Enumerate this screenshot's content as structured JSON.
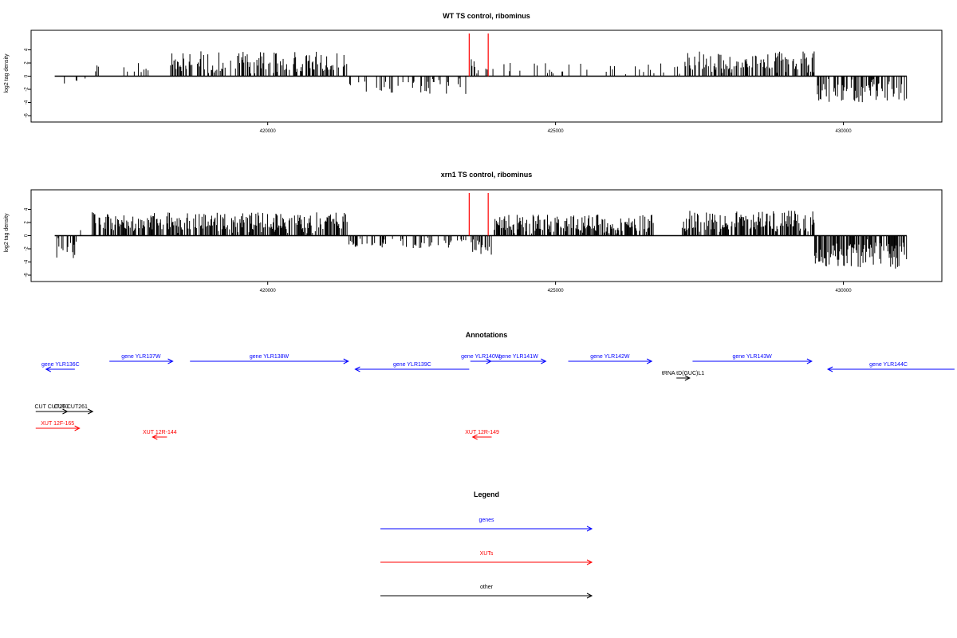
{
  "colors": {
    "gene": "#0000ff",
    "xut": "#ff0000",
    "other": "#000000",
    "marker": "#ff0000",
    "bar": "#000000"
  },
  "chart_data": [
    {
      "type": "bar",
      "title": "WT TS control, ribominus",
      "ylabel": "log2 tag density",
      "xlim": [
        415890,
        431710
      ],
      "ylim": [
        -6,
        6
      ],
      "x_ticks": [
        "420000",
        "425000",
        "430000"
      ],
      "y_ticks": [
        "4",
        "2",
        "0",
        "-2",
        "-4",
        "-6"
      ],
      "markers": [
        423500,
        423830
      ],
      "segments": [
        {
          "from": 416300,
          "to": 416950,
          "dir": -1,
          "density": 0.08,
          "amp": 1.2,
          "seed": 3
        },
        {
          "from": 416950,
          "to": 418300,
          "dir": 1,
          "density": 0.12,
          "amp": 2.0,
          "seed": 5
        },
        {
          "from": 418300,
          "to": 421400,
          "dir": 1,
          "density": 0.45,
          "amp": 3.8,
          "seed": 7
        },
        {
          "from": 421400,
          "to": 423450,
          "dir": -1,
          "density": 0.25,
          "amp": 2.8,
          "seed": 11
        },
        {
          "from": 423500,
          "to": 423830,
          "dir": 1,
          "density": 0.3,
          "amp": 2.8,
          "seed": 13
        },
        {
          "from": 423900,
          "to": 427200,
          "dir": 1,
          "density": 0.1,
          "amp": 2.0,
          "seed": 17
        },
        {
          "from": 427200,
          "to": 429500,
          "dir": 1,
          "density": 0.5,
          "amp": 3.8,
          "seed": 19
        },
        {
          "from": 429500,
          "to": 431100,
          "dir": -1,
          "density": 0.55,
          "amp": 4.2,
          "seed": 23
        }
      ]
    },
    {
      "type": "bar",
      "title": "xrn1 TS control, ribominus",
      "ylabel": "log2 tag density",
      "xlim": [
        415890,
        431710
      ],
      "ylim": [
        -6,
        6
      ],
      "x_ticks": [
        "420000",
        "425000",
        "430000"
      ],
      "y_ticks": [
        "4",
        "2",
        "0",
        "-2",
        "-4",
        "-6"
      ],
      "markers": [
        423500,
        423830
      ],
      "segments": [
        {
          "from": 416300,
          "to": 416700,
          "dir": -1,
          "density": 0.3,
          "amp": 3.6,
          "seed": 29
        },
        {
          "from": 416700,
          "to": 416950,
          "dir": 1,
          "density": 0.15,
          "amp": 1.0,
          "seed": 31
        },
        {
          "from": 416950,
          "to": 421400,
          "dir": 1,
          "density": 0.7,
          "amp": 3.6,
          "seed": 37
        },
        {
          "from": 421400,
          "to": 423450,
          "dir": -1,
          "density": 0.35,
          "amp": 2.0,
          "seed": 41
        },
        {
          "from": 423500,
          "to": 423900,
          "dir": -1,
          "density": 0.6,
          "amp": 3.0,
          "seed": 43
        },
        {
          "from": 423900,
          "to": 426700,
          "dir": 1,
          "density": 0.6,
          "amp": 3.2,
          "seed": 47
        },
        {
          "from": 427200,
          "to": 429500,
          "dir": 1,
          "density": 0.7,
          "amp": 3.8,
          "seed": 53
        },
        {
          "from": 429500,
          "to": 431100,
          "dir": -1,
          "density": 0.75,
          "amp": 5.0,
          "seed": 59
        }
      ]
    }
  ],
  "annotations": {
    "title": "Annotations",
    "features": [
      {
        "label": "gene YLR136C",
        "type": "gene",
        "start": 416150,
        "end": 416650,
        "strand": "-",
        "row": 1
      },
      {
        "label": "gene YLR137W",
        "type": "gene",
        "start": 417250,
        "end": 418350,
        "strand": "+",
        "row": 0
      },
      {
        "label": "gene YLR138W",
        "type": "gene",
        "start": 418650,
        "end": 421400,
        "strand": "+",
        "row": 0
      },
      {
        "label": "gene YLR139C",
        "type": "gene",
        "start": 421520,
        "end": 423500,
        "strand": "-",
        "row": 1
      },
      {
        "label": "gene YLR140W",
        "type": "gene",
        "start": 423520,
        "end": 423880,
        "strand": "+",
        "row": 0
      },
      {
        "label": "gene YLR141W",
        "type": "gene",
        "start": 423880,
        "end": 424830,
        "strand": "+",
        "row": 0
      },
      {
        "label": "gene YLR142W",
        "type": "gene",
        "start": 425220,
        "end": 426670,
        "strand": "+",
        "row": 0
      },
      {
        "label": "gene YLR143W",
        "type": "gene",
        "start": 427380,
        "end": 429450,
        "strand": "+",
        "row": 0
      },
      {
        "label": "gene YLR144C",
        "type": "gene",
        "start": 429730,
        "end": 431930,
        "strand": "-",
        "row": 1
      },
      {
        "label": "tRNA tD(GUC)L1",
        "type": "other",
        "start": 427100,
        "end": 427330,
        "strand": "+",
        "row": 2
      },
      {
        "label": "CUT CUT260",
        "type": "other",
        "start": 415970,
        "end": 416520,
        "strand": "+",
        "row": 3
      },
      {
        "label": "CUT CUT261",
        "type": "other",
        "start": 416200,
        "end": 416960,
        "strand": "+",
        "row": 3
      },
      {
        "label": "XUT 12F-165",
        "type": "xut",
        "start": 415970,
        "end": 416730,
        "strand": "+",
        "row": 4
      },
      {
        "label": "XUT 12R-144",
        "type": "xut",
        "start": 418000,
        "end": 418250,
        "strand": "-",
        "row": 5
      },
      {
        "label": "XUT 12R-149",
        "type": "xut",
        "start": 423560,
        "end": 423890,
        "strand": "-",
        "row": 5
      }
    ]
  },
  "legend": {
    "title": "Legend",
    "items": [
      {
        "label": "genes",
        "type": "gene"
      },
      {
        "label": "XUTs",
        "type": "xut"
      },
      {
        "label": "other",
        "type": "other"
      }
    ]
  }
}
